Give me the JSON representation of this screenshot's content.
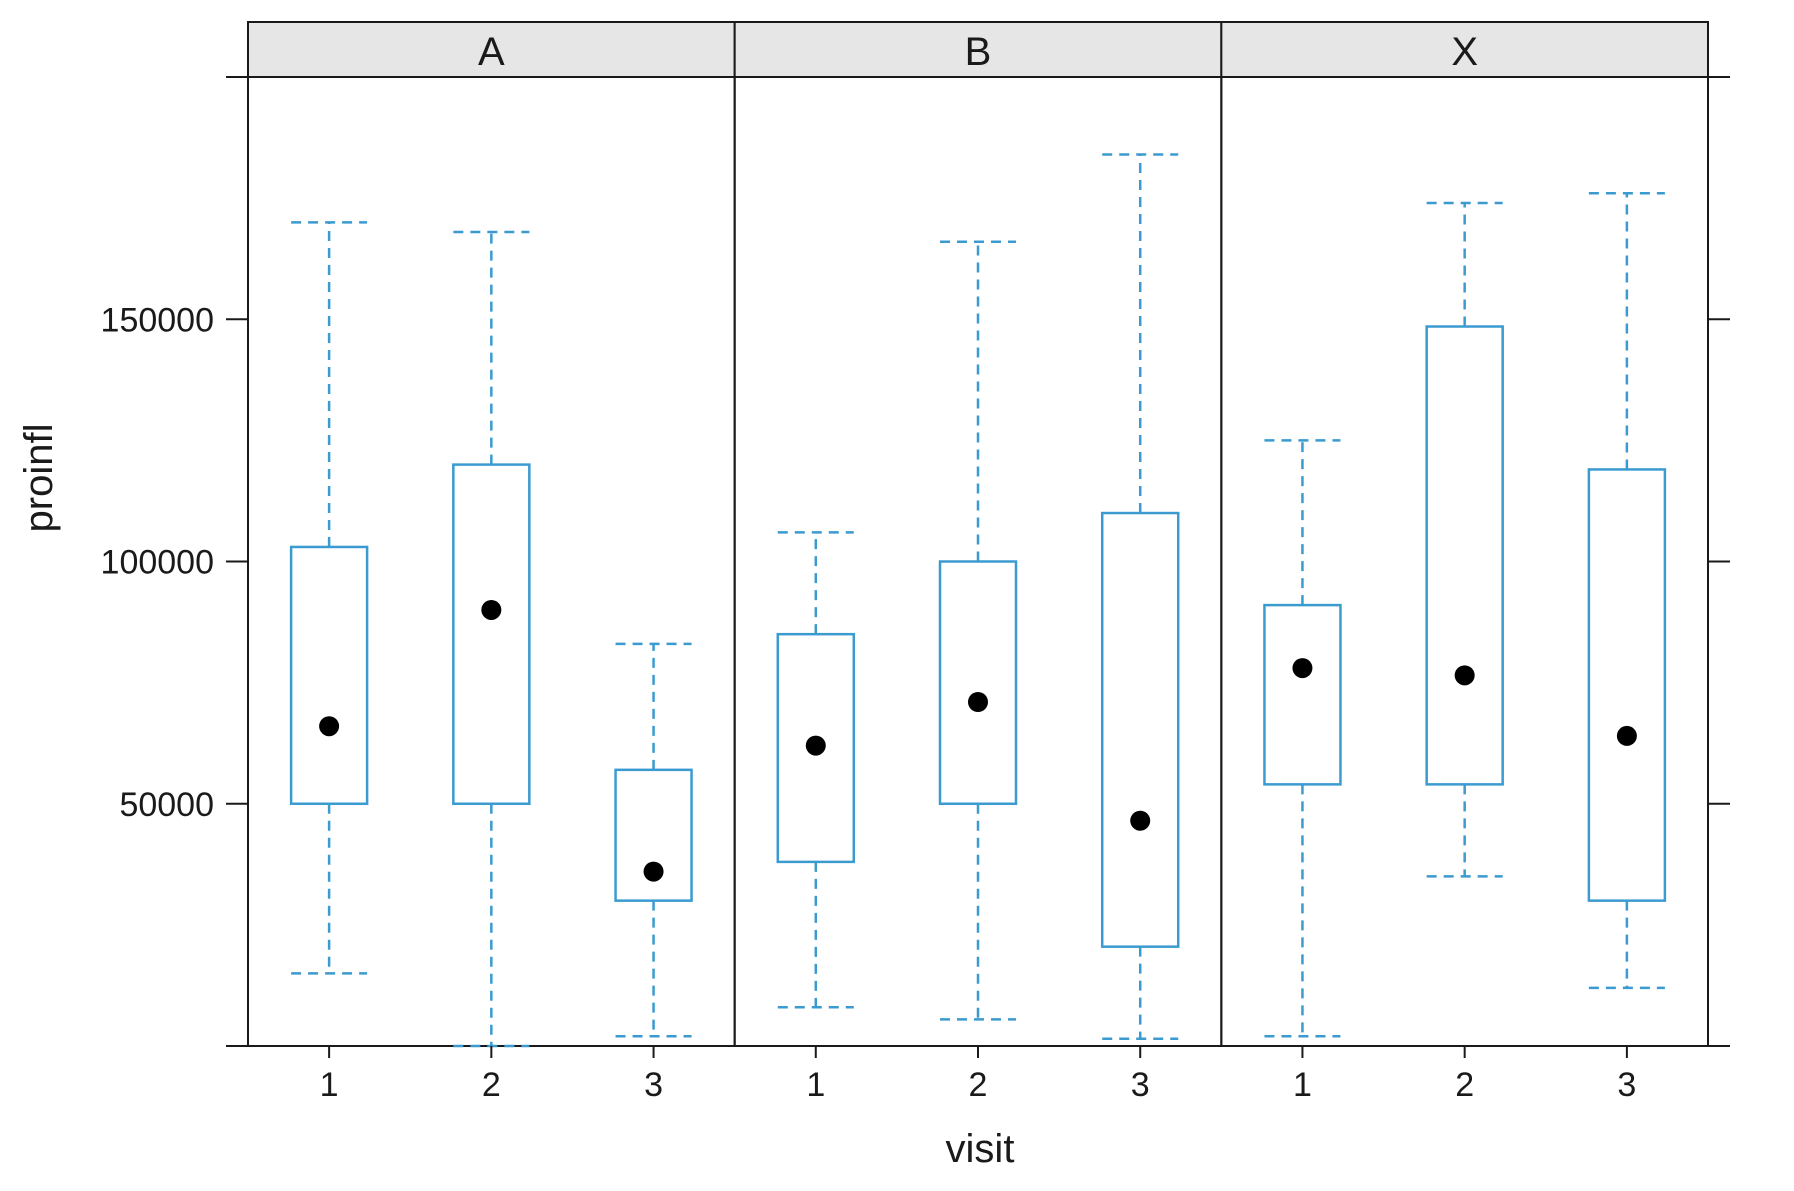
{
  "chart_data": {
    "type": "boxplot",
    "xlabel": "visit",
    "ylabel": "proinfl",
    "ylim": [
      0,
      200000
    ],
    "yticks": [
      50000,
      100000,
      150000
    ],
    "y_tick_labels": [
      "50000",
      "100000",
      "150000"
    ],
    "categories": [
      "1",
      "2",
      "3"
    ],
    "colors": {
      "box": "#3b9bd1",
      "median_dot": "#000000",
      "strip_bg": "#e6e6e6",
      "frame": "#1a1a1a"
    },
    "panels": [
      {
        "label": "A",
        "boxes": [
          {
            "visit": "1",
            "whisker_low": 15000,
            "q1": 50000,
            "median": 66000,
            "q3": 103000,
            "whisker_high": 170000
          },
          {
            "visit": "2",
            "whisker_low": 0,
            "q1": 50000,
            "median": 90000,
            "q3": 120000,
            "whisker_high": 168000
          },
          {
            "visit": "3",
            "whisker_low": 2000,
            "q1": 30000,
            "median": 36000,
            "q3": 57000,
            "whisker_high": 83000
          }
        ]
      },
      {
        "label": "B",
        "boxes": [
          {
            "visit": "1",
            "whisker_low": 8000,
            "q1": 38000,
            "median": 62000,
            "q3": 85000,
            "whisker_high": 106000
          },
          {
            "visit": "2",
            "whisker_low": 5500,
            "q1": 50000,
            "median": 71000,
            "q3": 100000,
            "whisker_high": 166000
          },
          {
            "visit": "3",
            "whisker_low": 1500,
            "q1": 20500,
            "median": 46500,
            "q3": 110000,
            "whisker_high": 184000
          }
        ]
      },
      {
        "label": "X",
        "boxes": [
          {
            "visit": "1",
            "whisker_low": 2000,
            "q1": 54000,
            "median": 78000,
            "q3": 91000,
            "whisker_high": 125000
          },
          {
            "visit": "2",
            "whisker_low": 35000,
            "q1": 54000,
            "median": 76500,
            "q3": 148500,
            "whisker_high": 174000
          },
          {
            "visit": "3",
            "whisker_low": 12000,
            "q1": 30000,
            "median": 64000,
            "q3": 119000,
            "whisker_high": 176000
          }
        ]
      }
    ]
  }
}
